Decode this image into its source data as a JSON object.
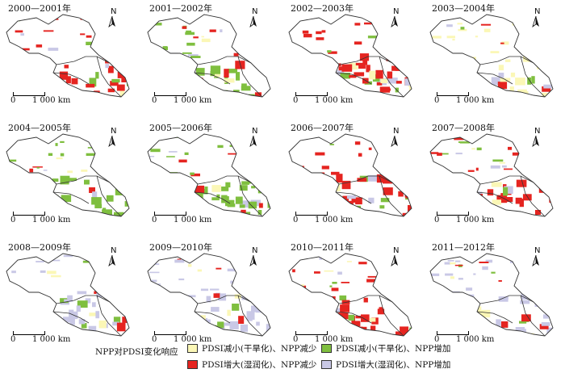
{
  "panels": [
    {
      "title": "2000—2001年",
      "dominant": "c2"
    },
    {
      "title": "2001—2002年",
      "dominant": "c3"
    },
    {
      "title": "2002—2003年",
      "dominant": "c2"
    },
    {
      "title": "2003—2004年",
      "dominant": "c1"
    },
    {
      "title": "2004—2005年",
      "dominant": "c3"
    },
    {
      "title": "2005—2006年",
      "dominant": "c3"
    },
    {
      "title": "2006—2007年",
      "dominant": "c2"
    },
    {
      "title": "2007—2008年",
      "dominant": "c2"
    },
    {
      "title": "2008—2009年",
      "dominant": "c4"
    },
    {
      "title": "2009—2010年",
      "dominant": "c4"
    },
    {
      "title": "2010—2011年",
      "dominant": "c2"
    },
    {
      "title": "2011—2012年",
      "dominant": "c4"
    }
  ],
  "north_label": "N",
  "scale": {
    "zero": "0",
    "length": "1 000 km"
  },
  "legend": {
    "title": "NPP对PDSI变化响应",
    "items": [
      {
        "key": "c1",
        "label": "PDSI减小(干旱化)、NPP减少",
        "color": "#fbf7b6"
      },
      {
        "key": "c3",
        "label": "PDSI减小(干旱化)、NPP增加",
        "color": "#7fbf3f"
      },
      {
        "key": "c2",
        "label": "PDSI增大(湿润化)、NPP减少",
        "color": "#e52420"
      },
      {
        "key": "c4",
        "label": "PDSI增大(湿润化)、NPP增加",
        "color": "#c9c8e6"
      }
    ]
  },
  "outline_color": "#333333",
  "background_region_color": "#ffffff"
}
